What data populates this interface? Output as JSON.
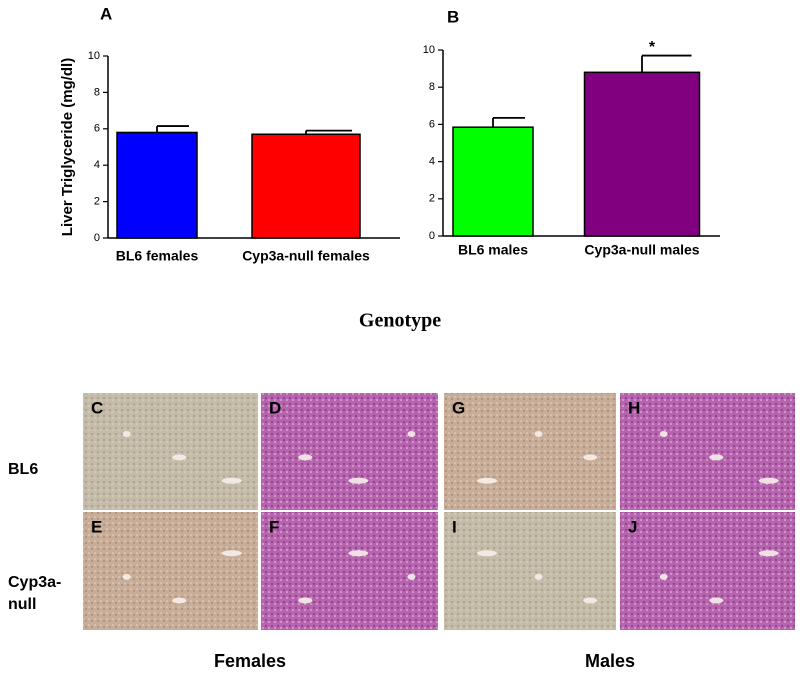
{
  "chart_data": [
    {
      "type": "bar",
      "panel": "A",
      "ylabel": "Liver Triglyceride (mg/dl)",
      "categories": [
        "BL6 females",
        "Cyp3a-null females"
      ],
      "values": [
        5.8,
        5.7
      ],
      "errors": [
        0.35,
        0.2
      ],
      "colors": [
        "#0000ff",
        "#ff0000"
      ],
      "ylim": [
        0,
        10
      ],
      "yticks": [
        0,
        2,
        4,
        6,
        8,
        10
      ]
    },
    {
      "type": "bar",
      "panel": "B",
      "categories": [
        "BL6 males",
        "Cyp3a-null males"
      ],
      "values": [
        5.85,
        8.8
      ],
      "errors": [
        0.5,
        0.9
      ],
      "colors": [
        "#00ff00",
        "#800080"
      ],
      "annotations": [
        null,
        "*"
      ],
      "ylim": [
        0,
        10
      ],
      "yticks": [
        0,
        2,
        4,
        6,
        8,
        10
      ]
    }
  ],
  "xlabel": "Genotype",
  "histology": {
    "panels": [
      [
        "C",
        "D",
        "G",
        "H"
      ],
      [
        "E",
        "F",
        "I",
        "J"
      ]
    ],
    "row_labels": [
      [
        "BL6"
      ],
      [
        "Cyp3a-",
        "null"
      ]
    ],
    "column_labels": [
      "Females",
      "Males"
    ]
  }
}
